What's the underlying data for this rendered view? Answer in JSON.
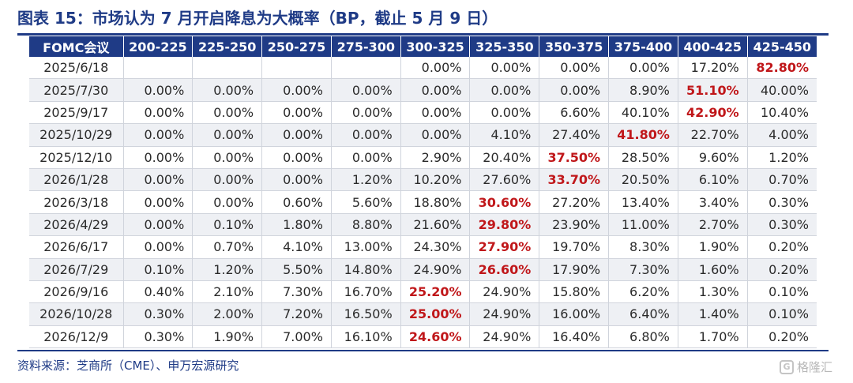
{
  "title": "图表 15：市场认为 7 月开启降息为大概率（BP，截止 5 月 9 日）",
  "table": {
    "headers": [
      "FOMC会议",
      "200-225",
      "225-250",
      "250-275",
      "275-300",
      "300-325",
      "325-350",
      "350-375",
      "375-400",
      "400-425",
      "425-450"
    ],
    "rows": [
      {
        "date": "2025/6/18",
        "cells": [
          "",
          "",
          "",
          "",
          "0.00%",
          "0.00%",
          "0.00%",
          "0.00%",
          "17.20%",
          "82.80%"
        ],
        "highlight": 9
      },
      {
        "date": "2025/7/30",
        "cells": [
          "0.00%",
          "0.00%",
          "0.00%",
          "0.00%",
          "0.00%",
          "0.00%",
          "0.00%",
          "8.90%",
          "51.10%",
          "40.00%"
        ],
        "highlight": 8
      },
      {
        "date": "2025/9/17",
        "cells": [
          "0.00%",
          "0.00%",
          "0.00%",
          "0.00%",
          "0.00%",
          "0.00%",
          "6.60%",
          "40.10%",
          "42.90%",
          "10.40%"
        ],
        "highlight": 8
      },
      {
        "date": "2025/10/29",
        "cells": [
          "0.00%",
          "0.00%",
          "0.00%",
          "0.00%",
          "0.00%",
          "4.10%",
          "27.40%",
          "41.80%",
          "22.70%",
          "4.00%"
        ],
        "highlight": 7
      },
      {
        "date": "2025/12/10",
        "cells": [
          "0.00%",
          "0.00%",
          "0.00%",
          "0.00%",
          "2.90%",
          "20.40%",
          "37.50%",
          "28.50%",
          "9.60%",
          "1.20%"
        ],
        "highlight": 6
      },
      {
        "date": "2026/1/28",
        "cells": [
          "0.00%",
          "0.00%",
          "0.00%",
          "1.20%",
          "10.20%",
          "27.60%",
          "33.70%",
          "20.50%",
          "6.10%",
          "0.70%"
        ],
        "highlight": 6
      },
      {
        "date": "2026/3/18",
        "cells": [
          "0.00%",
          "0.00%",
          "0.60%",
          "5.60%",
          "18.80%",
          "30.60%",
          "27.20%",
          "13.40%",
          "3.40%",
          "0.30%"
        ],
        "highlight": 5
      },
      {
        "date": "2026/4/29",
        "cells": [
          "0.00%",
          "0.10%",
          "1.80%",
          "8.80%",
          "21.60%",
          "29.80%",
          "23.90%",
          "11.00%",
          "2.70%",
          "0.30%"
        ],
        "highlight": 5
      },
      {
        "date": "2026/6/17",
        "cells": [
          "0.00%",
          "0.70%",
          "4.10%",
          "13.00%",
          "24.30%",
          "27.90%",
          "19.70%",
          "8.30%",
          "1.90%",
          "0.20%"
        ],
        "highlight": 5
      },
      {
        "date": "2026/7/29",
        "cells": [
          "0.10%",
          "1.20%",
          "5.50%",
          "14.80%",
          "24.90%",
          "26.60%",
          "17.90%",
          "7.30%",
          "1.60%",
          "0.20%"
        ],
        "highlight": 5
      },
      {
        "date": "2026/9/16",
        "cells": [
          "0.40%",
          "2.10%",
          "7.30%",
          "16.70%",
          "25.20%",
          "24.90%",
          "15.80%",
          "6.20%",
          "1.30%",
          "0.10%"
        ],
        "highlight": 4
      },
      {
        "date": "2026/10/28",
        "cells": [
          "0.30%",
          "2.00%",
          "7.20%",
          "16.50%",
          "25.00%",
          "24.90%",
          "16.00%",
          "6.40%",
          "1.40%",
          "0.10%"
        ],
        "highlight": 4
      },
      {
        "date": "2026/12/9",
        "cells": [
          "0.30%",
          "1.90%",
          "7.00%",
          "16.10%",
          "24.60%",
          "24.90%",
          "16.40%",
          "6.80%",
          "1.70%",
          "0.20%"
        ],
        "highlight": 4
      }
    ]
  },
  "source": "资料来源：芝商所（CME）、申万宏源研究",
  "watermark": {
    "text": "格隆汇",
    "icon": "gelonghui-logo-icon"
  },
  "colors": {
    "header_bg": "#1f3b86",
    "highlight": "#c0171a",
    "alt_row": "#eef0f4"
  }
}
